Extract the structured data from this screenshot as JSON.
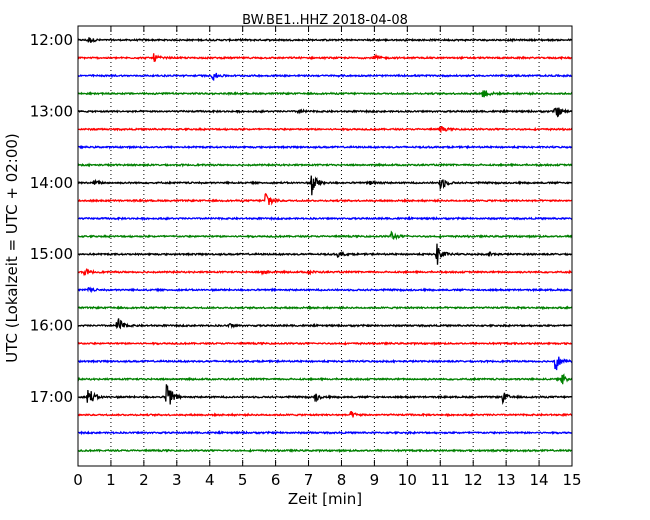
{
  "chart_data": {
    "type": "line",
    "title": "BW.BE1..HHZ 2018-04-08",
    "xlabel": "Zeit  [min]",
    "ylabel": "UTC (Lokalzeit = UTC + 02:00)",
    "xlim": [
      0,
      15
    ],
    "x_ticks": [
      "0",
      "1",
      "2",
      "3",
      "4",
      "5",
      "6",
      "7",
      "8",
      "9",
      "10",
      "11",
      "12",
      "13",
      "14",
      "15"
    ],
    "y_ticks": [
      "12:00",
      "13:00",
      "14:00",
      "15:00",
      "16:00",
      "17:00"
    ],
    "grid": "vertical dotted",
    "color_cycle": [
      "#000000",
      "#ff0000",
      "#0000ff",
      "#008000"
    ],
    "traces": [
      {
        "start": "12:00",
        "events": [
          {
            "t": 0.3,
            "a": 0.35
          }
        ]
      },
      {
        "start": "12:15",
        "events": [
          {
            "t": 2.3,
            "a": 0.35
          },
          {
            "t": 9.0,
            "a": 0.3
          }
        ]
      },
      {
        "start": "12:30",
        "events": [
          {
            "t": 4.1,
            "a": 0.4
          }
        ]
      },
      {
        "start": "12:45",
        "events": [
          {
            "t": 12.3,
            "a": 0.55
          }
        ]
      },
      {
        "start": "13:00",
        "events": [
          {
            "t": 6.7,
            "a": 0.2
          },
          {
            "t": 14.5,
            "a": 0.7
          }
        ]
      },
      {
        "start": "13:15",
        "events": [
          {
            "t": 11.0,
            "a": 0.3
          }
        ]
      },
      {
        "start": "13:30",
        "events": []
      },
      {
        "start": "13:45",
        "events": []
      },
      {
        "start": "14:00",
        "events": [
          {
            "t": 0.5,
            "a": 0.25
          },
          {
            "t": 7.1,
            "a": 1.3
          },
          {
            "t": 8.9,
            "a": 0.3
          },
          {
            "t": 11.0,
            "a": 0.8
          }
        ]
      },
      {
        "start": "14:15",
        "events": [
          {
            "t": 5.7,
            "a": 1.2
          }
        ]
      },
      {
        "start": "14:30",
        "events": []
      },
      {
        "start": "14:45",
        "events": [
          {
            "t": 9.5,
            "a": 0.5
          }
        ]
      },
      {
        "start": "15:00",
        "events": [
          {
            "t": 7.9,
            "a": 0.3
          },
          {
            "t": 10.9,
            "a": 1.2
          },
          {
            "t": 12.5,
            "a": 0.2
          }
        ]
      },
      {
        "start": "15:15",
        "events": [
          {
            "t": 0.2,
            "a": 0.3
          },
          {
            "t": 5.6,
            "a": 0.25
          },
          {
            "t": 7.0,
            "a": 0.2
          }
        ]
      },
      {
        "start": "15:30",
        "events": [
          {
            "t": 0.3,
            "a": 0.2
          }
        ]
      },
      {
        "start": "15:45",
        "events": []
      },
      {
        "start": "16:00",
        "events": [
          {
            "t": 1.2,
            "a": 0.9
          },
          {
            "t": 4.6,
            "a": 0.2
          }
        ]
      },
      {
        "start": "16:15",
        "events": []
      },
      {
        "start": "16:30",
        "events": [
          {
            "t": 14.5,
            "a": 1.0
          }
        ]
      },
      {
        "start": "16:45",
        "events": [
          {
            "t": 14.7,
            "a": 0.5
          }
        ]
      },
      {
        "start": "17:00",
        "events": [
          {
            "t": 0.3,
            "a": 1.2
          },
          {
            "t": 2.7,
            "a": 2.0
          },
          {
            "t": 7.2,
            "a": 0.4
          },
          {
            "t": 12.9,
            "a": 0.5
          }
        ]
      },
      {
        "start": "17:15",
        "events": [
          {
            "t": 8.3,
            "a": 0.3
          }
        ]
      },
      {
        "start": "17:30",
        "events": []
      },
      {
        "start": "17:45",
        "events": []
      }
    ]
  }
}
